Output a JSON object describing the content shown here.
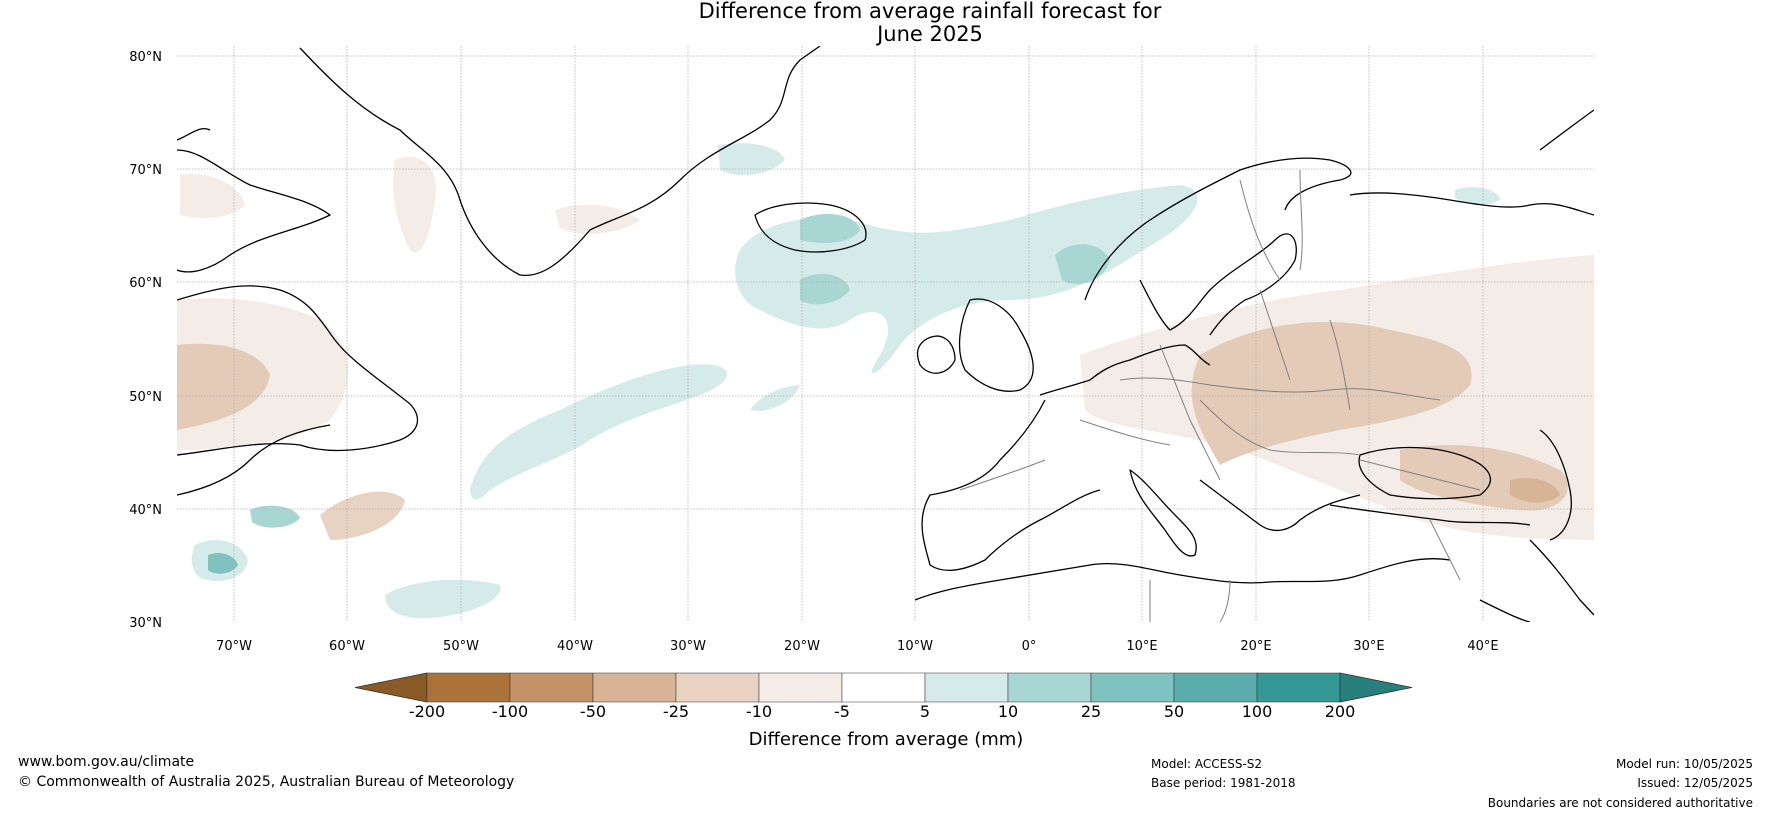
{
  "title": {
    "line1": "Difference from average rainfall forecast for",
    "line2": "June 2025"
  },
  "map": {
    "region": "North Atlantic and Europe",
    "lat_labels": [
      "80°N",
      "70°N",
      "60°N",
      "50°N",
      "40°N",
      "30°N"
    ],
    "lon_labels": [
      "70°W",
      "60°W",
      "50°W",
      "40°W",
      "30°W",
      "20°W",
      "10°W",
      "0°",
      "10°E",
      "20°E",
      "30°E",
      "40°E"
    ]
  },
  "legend": {
    "tick_labels": [
      "-200",
      "-100",
      "-50",
      "-25",
      "-10",
      "-5",
      "5",
      "10",
      "25",
      "50",
      "100",
      "200"
    ],
    "colors": [
      "#8a5a26",
      "#ab733a",
      "#c39266",
      "#d6b495",
      "#e8d3c2",
      "#f4ece6",
      "#ffffff",
      "#d5ebe9",
      "#a8d6d3",
      "#80c2bf",
      "#5aadab",
      "#349995",
      "#27807c"
    ],
    "label": "Difference from average (mm)"
  },
  "footer": {
    "website": "www.bom.gov.au/climate",
    "copyright": "© Commonwealth of Australia 2025, Australian Bureau of Meteorology",
    "model": "Model: ACCESS-S2",
    "base_period": "Base period: 1981-2018",
    "model_run": "Model run: 10/05/2025",
    "issued": "Issued: 12/05/2025",
    "disclaimer": "Boundaries are not considered authoritative"
  }
}
